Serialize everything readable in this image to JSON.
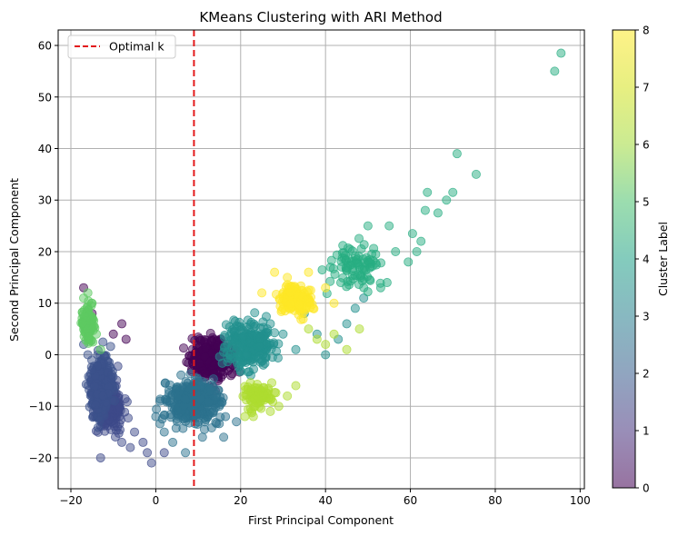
{
  "chart_data": {
    "type": "scatter",
    "title": "KMeans Clustering with ARI Method",
    "xlabel": "First Principal Component",
    "ylabel": "Second Principal Component",
    "xlim": [
      -23,
      101
    ],
    "ylim": [
      -26,
      63
    ],
    "xticks": [
      -20,
      0,
      20,
      40,
      60,
      80,
      100
    ],
    "yticks": [
      -20,
      -10,
      0,
      10,
      20,
      30,
      40,
      50,
      60
    ],
    "grid": true,
    "legend": {
      "position": "top-left",
      "entries": [
        {
          "label": "Optimal k",
          "style": "dashed",
          "color": "#e31a1c"
        }
      ]
    },
    "vline": {
      "x": 9,
      "label": "Optimal k",
      "color": "#e31a1c",
      "style": "dashed"
    },
    "colorbar": {
      "label": "Cluster Label",
      "min": 0,
      "max": 8,
      "ticks": [
        0,
        1,
        2,
        3,
        4,
        5,
        6,
        7,
        8
      ],
      "colormap": "viridis",
      "colors": [
        "#440154",
        "#46327e",
        "#365c8d",
        "#277f8e",
        "#1fa187",
        "#4ac16d",
        "#a0da39",
        "#d4e21a",
        "#fde725"
      ]
    },
    "marker_alpha": 0.5,
    "clusters": [
      {
        "label": 0,
        "color": "#440154",
        "center": [
          13,
          -1
        ],
        "spread": [
          4.5,
          3.5
        ],
        "count": 320,
        "extra": [
          [
            -17,
            13
          ],
          [
            -15,
            8
          ],
          [
            -8,
            6
          ],
          [
            -7,
            3
          ],
          [
            -10,
            4
          ]
        ]
      },
      {
        "label": 1,
        "color": "#3e4a89",
        "center": [
          -11,
          -10
        ],
        "spread": [
          3.2,
          4.5
        ],
        "count": 200,
        "extra": [
          [
            -13,
            -20
          ],
          [
            -8,
            -17
          ],
          [
            -5,
            -15
          ],
          [
            -3,
            -17
          ],
          [
            -1,
            -21
          ],
          [
            -2,
            -19
          ],
          [
            2,
            -19
          ],
          [
            -6,
            -18
          ],
          [
            -9,
            -14
          ]
        ]
      },
      {
        "label": 2,
        "color": "#3b528b",
        "center": [
          -13,
          -6
        ],
        "spread": [
          2.5,
          5
        ],
        "count": 260,
        "extra": [
          [
            -16,
            0
          ],
          [
            -17,
            2
          ],
          [
            -15,
            -3
          ]
        ]
      },
      {
        "label": 3,
        "color": "#2c728e",
        "center": [
          9,
          -9
        ],
        "spread": [
          6,
          3.8
        ],
        "count": 360,
        "extra": [
          [
            0,
            -12
          ],
          [
            2,
            -15
          ],
          [
            4,
            -17
          ],
          [
            7,
            -19
          ],
          [
            11,
            -16
          ],
          [
            16,
            -16
          ],
          [
            19,
            -13
          ],
          [
            1,
            -9
          ]
        ]
      },
      {
        "label": 4,
        "color": "#21908d",
        "center": [
          22,
          2
        ],
        "spread": [
          5,
          4
        ],
        "count": 260,
        "extra": [
          [
            27,
            6
          ],
          [
            30,
            4
          ],
          [
            33,
            1
          ],
          [
            35,
            8
          ],
          [
            38,
            4
          ],
          [
            40,
            0
          ],
          [
            43,
            3
          ],
          [
            45,
            6
          ],
          [
            47,
            9
          ],
          [
            49,
            11
          ]
        ]
      },
      {
        "label": 5,
        "color": "#27ad81",
        "center": [
          47,
          17
        ],
        "spread": [
          6,
          4
        ],
        "count": 90,
        "extra": [
          [
            94,
            55
          ],
          [
            95.5,
            58.5
          ],
          [
            71,
            39
          ],
          [
            75.5,
            35
          ],
          [
            64,
            31.5
          ],
          [
            70,
            31.5
          ],
          [
            68.5,
            30
          ],
          [
            66.5,
            27.5
          ],
          [
            63.5,
            28
          ],
          [
            60.5,
            23.5
          ],
          [
            62.5,
            22
          ],
          [
            61.5,
            20
          ],
          [
            59.5,
            18
          ],
          [
            56.5,
            20
          ],
          [
            55,
            25
          ],
          [
            50,
            25
          ],
          [
            54.5,
            14
          ],
          [
            53,
            13
          ]
        ]
      },
      {
        "label": 6,
        "color": "#5ec962",
        "center": [
          -16,
          6
        ],
        "spread": [
          1.2,
          3
        ],
        "count": 130,
        "extra": [
          [
            -17,
            11
          ],
          [
            -16,
            12
          ],
          [
            -15,
            10
          ],
          [
            -14,
            4
          ],
          [
            -13,
            1
          ]
        ]
      },
      {
        "label": 7,
        "color": "#addc30",
        "center": [
          24,
          -8
        ],
        "spread": [
          3,
          2.5
        ],
        "count": 80,
        "extra": [
          [
            31,
            -8
          ],
          [
            33,
            -6
          ],
          [
            27,
            -11
          ],
          [
            23,
            -12
          ],
          [
            21,
            -12
          ],
          [
            29,
            -10
          ],
          [
            42,
            4
          ],
          [
            48,
            5
          ],
          [
            45,
            1
          ],
          [
            36,
            5
          ],
          [
            38,
            3
          ],
          [
            40,
            2
          ]
        ]
      },
      {
        "label": 8,
        "color": "#fde725",
        "center": [
          33,
          11
        ],
        "spread": [
          4,
          2.6
        ],
        "count": 150,
        "extra": [
          [
            28,
            16
          ],
          [
            31,
            15
          ],
          [
            36,
            16
          ],
          [
            25,
            12
          ],
          [
            40,
            13
          ],
          [
            42,
            10
          ]
        ]
      }
    ]
  }
}
